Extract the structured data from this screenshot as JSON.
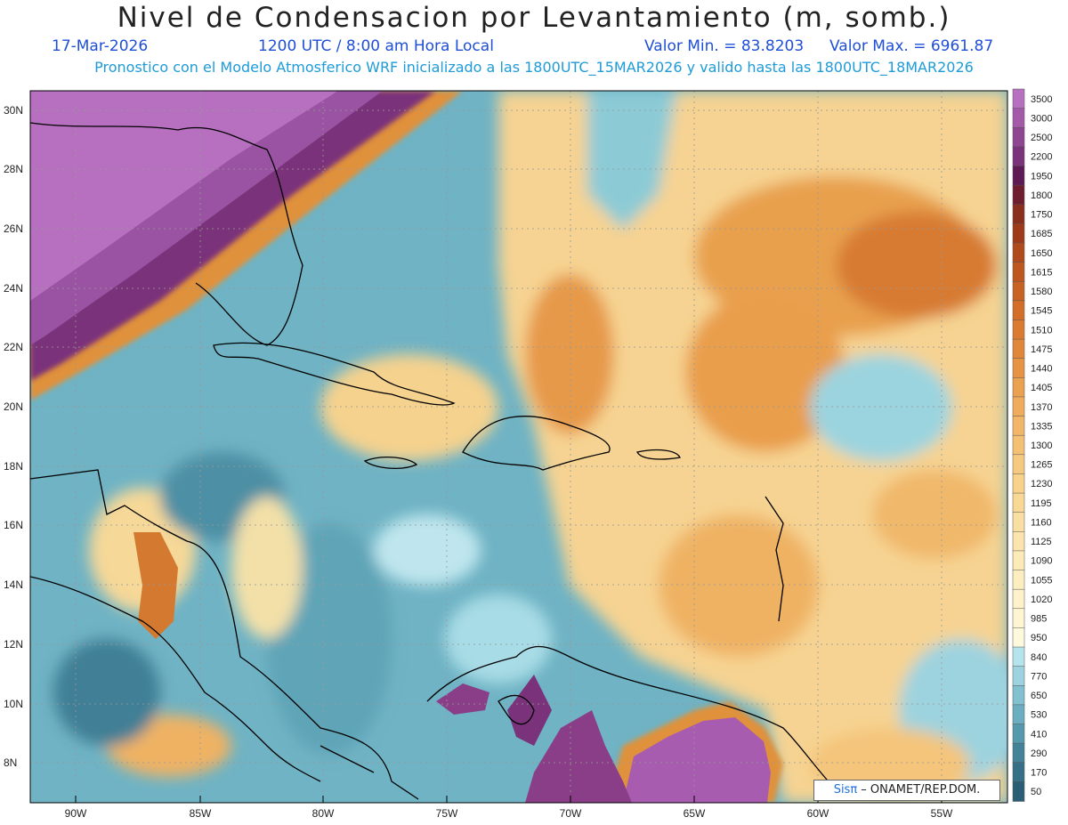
{
  "header": {
    "title": "Nivel de Condensacion por Levantamiento (m, somb.)",
    "date": "17-Mar-2026",
    "time": "1200 UTC / 8:00 am Hora Local",
    "min_label": "Valor Min. = 83.8203",
    "max_label": "Valor Max. = 6961.87",
    "subtitle": "Pronostico con el Modelo Atmosferico WRF inicializado a las 1800UTC_15MAR2026 y valido hasta las  1800UTC_18MAR2026"
  },
  "map": {
    "lat_labels": [
      "30N",
      "28N",
      "26N",
      "24N",
      "22N",
      "20N",
      "18N",
      "16N",
      "14N",
      "12N",
      "10N",
      "8N"
    ],
    "lon_labels": [
      "90W",
      "85W",
      "80W",
      "75W",
      "70W",
      "65W",
      "60W",
      "55W"
    ]
  },
  "legend": {
    "levels": [
      "3500",
      "3000",
      "2500",
      "2200",
      "1950",
      "1800",
      "1750",
      "1685",
      "1650",
      "1615",
      "1580",
      "1545",
      "1510",
      "1475",
      "1440",
      "1405",
      "1370",
      "1335",
      "1300",
      "1265",
      "1230",
      "1195",
      "1160",
      "1125",
      "1090",
      "1055",
      "1020",
      "985",
      "950",
      "840",
      "770",
      "650",
      "530",
      "410",
      "290",
      "170",
      "50"
    ],
    "colors": [
      "#b76fc0",
      "#a35aa9",
      "#8e4592",
      "#7a327a",
      "#5e1a55",
      "#6e1e2e",
      "#8a2e1e",
      "#9e3a18",
      "#b04a1c",
      "#bd561f",
      "#c86124",
      "#d26e2a",
      "#da7b31",
      "#e1873a",
      "#e69444",
      "#eaa150",
      "#eeac5c",
      "#f1b668",
      "#f4c074",
      "#f6c980",
      "#f8d18b",
      "#f9d896",
      "#fadfa2",
      "#fbe5ad",
      "#fceab7",
      "#fdeec0",
      "#fdf2c9",
      "#fef5d2",
      "#fef8dc",
      "#b6e4ec",
      "#9dd3df",
      "#82c1d0",
      "#6aaebf",
      "#5599ad",
      "#43839a",
      "#357087",
      "#2a5e75"
    ]
  },
  "credit": {
    "brand": "Sisπ",
    "text": " – ONAMET/REP.DOM."
  }
}
